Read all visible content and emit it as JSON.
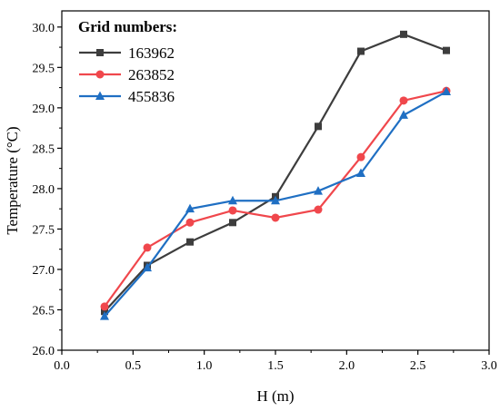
{
  "chart_data": {
    "type": "line",
    "xlabel": "H (m)",
    "ylabel": "Temperature (°C)",
    "xlim": [
      0.0,
      3.0
    ],
    "ylim": [
      26.0,
      30.2
    ],
    "xticks": [
      "0.0",
      "0.5",
      "1.0",
      "1.5",
      "2.0",
      "2.5",
      "3.0"
    ],
    "yticks": [
      "26.0",
      "26.5",
      "27.0",
      "27.5",
      "28.0",
      "28.5",
      "29.0",
      "29.5",
      "30.0"
    ],
    "legend_title": "Grid numbers:",
    "legend_position": "top-left",
    "grid": false,
    "x": [
      0.3,
      0.6,
      0.9,
      1.2,
      1.5,
      1.8,
      2.1,
      2.4,
      2.7
    ],
    "series": [
      {
        "name": "163962",
        "color": "#3d3d3d",
        "marker": "square",
        "values": [
          26.48,
          27.05,
          27.34,
          27.58,
          27.9,
          28.77,
          29.7,
          29.91,
          29.71
        ]
      },
      {
        "name": "263852",
        "color": "#f0474c",
        "marker": "circle",
        "values": [
          26.54,
          27.27,
          27.58,
          27.73,
          27.64,
          27.74,
          28.39,
          29.09,
          29.21
        ]
      },
      {
        "name": "455836",
        "color": "#1f6fc3",
        "marker": "triangle",
        "values": [
          26.42,
          27.02,
          27.75,
          27.85,
          27.85,
          27.97,
          28.19,
          28.91,
          29.2
        ]
      }
    ]
  }
}
